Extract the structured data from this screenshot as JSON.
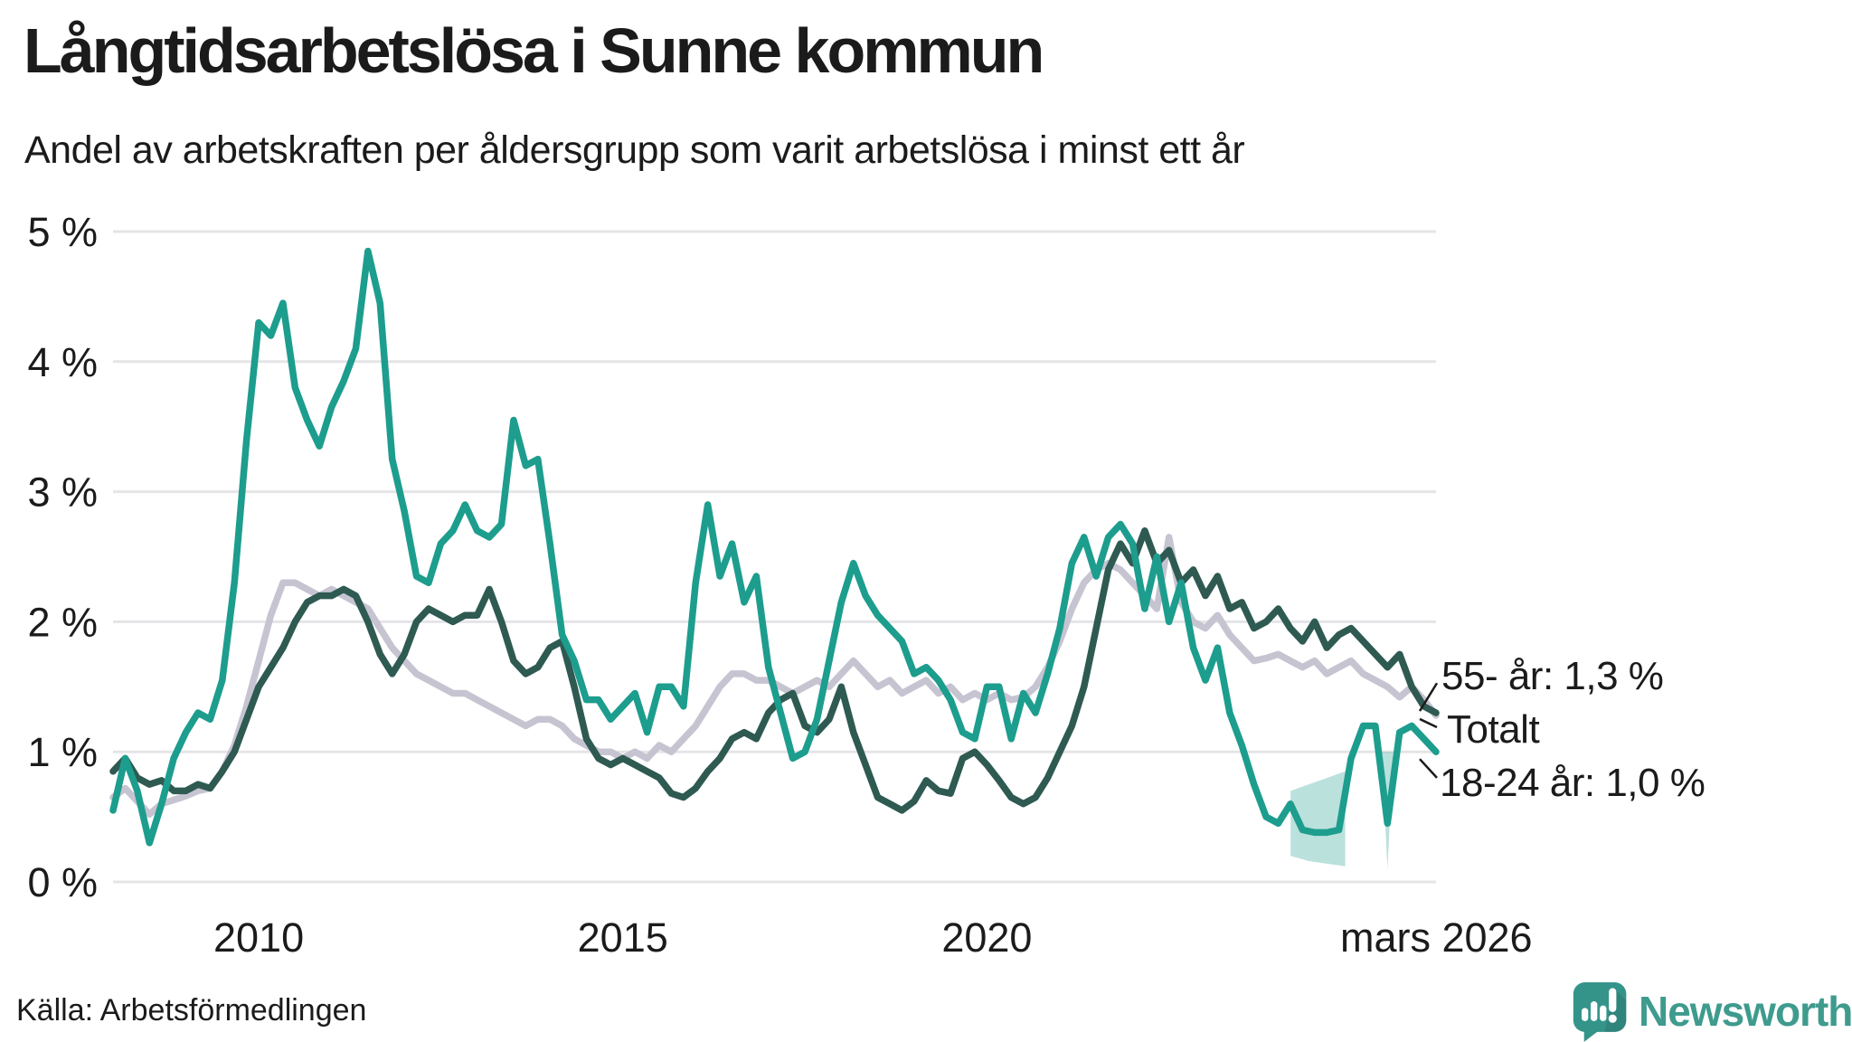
{
  "header": {
    "title": "Långtidsarbetslösa i Sunne kommun",
    "subtitle": "Andel av arbetskraften per åldersgrupp som varit arbetslösa i minst ett år"
  },
  "source": {
    "label": "Källa: Arbetsförmedlingen"
  },
  "logo": {
    "name": "Newsworthy",
    "icon": "newsworthy-speech-bubble-chart-icon",
    "color": "#35948a"
  },
  "chart_data": {
    "type": "line",
    "title": "Långtidsarbetslösa i Sunne kommun",
    "xlabel": "",
    "ylabel": "",
    "ylim": [
      0,
      5
    ],
    "grid": "horizontal",
    "x_start": 2008.0,
    "x_step": 0.1666667,
    "y_ticks": [
      {
        "v": 5,
        "label": "5 %"
      },
      {
        "v": 4,
        "label": "4 %"
      },
      {
        "v": 3,
        "label": "3 %"
      },
      {
        "v": 2,
        "label": "2 %"
      },
      {
        "v": 1,
        "label": "1 %"
      },
      {
        "v": 0,
        "label": "0 %"
      }
    ],
    "x_ticks": [
      {
        "t": 2010.0,
        "label": "2010"
      },
      {
        "t": 2015.0,
        "label": "2015"
      },
      {
        "t": 2020.0,
        "label": "2020"
      },
      {
        "t": 2026.17,
        "label": "mars 2026"
      }
    ],
    "colors": {
      "teal": "#1d9d8d",
      "dark_green": "#2e5a52",
      "gray": "#c7c4d2",
      "gridline": "#e5e5e8",
      "text": "#1b1b1b"
    },
    "series": [
      {
        "name": "Totalt",
        "color": "#c7c4d2",
        "values": [
          0.65,
          0.72,
          0.62,
          0.52,
          0.6,
          0.63,
          0.66,
          0.7,
          0.72,
          0.85,
          1.05,
          1.35,
          1.7,
          2.05,
          2.3,
          2.3,
          2.25,
          2.2,
          2.25,
          2.2,
          2.15,
          2.1,
          1.95,
          1.8,
          1.7,
          1.6,
          1.55,
          1.5,
          1.45,
          1.45,
          1.4,
          1.35,
          1.3,
          1.25,
          1.2,
          1.25,
          1.25,
          1.2,
          1.1,
          1.05,
          1.0,
          1.0,
          0.95,
          1.0,
          0.95,
          1.05,
          1.0,
          1.1,
          1.2,
          1.35,
          1.5,
          1.6,
          1.6,
          1.55,
          1.55,
          1.5,
          1.45,
          1.5,
          1.55,
          1.5,
          1.6,
          1.7,
          1.6,
          1.5,
          1.55,
          1.45,
          1.5,
          1.55,
          1.45,
          1.5,
          1.4,
          1.45,
          1.4,
          1.45,
          1.4,
          1.42,
          1.5,
          1.65,
          1.85,
          2.1,
          2.3,
          2.4,
          2.45,
          2.4,
          2.3,
          2.2,
          2.1,
          2.65,
          2.15,
          2.0,
          1.95,
          2.05,
          1.9,
          1.8,
          1.7,
          1.72,
          1.75,
          1.7,
          1.65,
          1.7,
          1.6,
          1.65,
          1.7,
          1.6,
          1.55,
          1.5,
          1.42,
          1.5,
          1.4,
          1.28
        ]
      },
      {
        "name": "55- år",
        "color": "#2e5a52",
        "values": [
          0.85,
          0.95,
          0.8,
          0.75,
          0.78,
          0.7,
          0.7,
          0.75,
          0.72,
          0.85,
          1.0,
          1.25,
          1.5,
          1.65,
          1.8,
          2.0,
          2.15,
          2.2,
          2.2,
          2.25,
          2.2,
          2.0,
          1.75,
          1.6,
          1.75,
          2.0,
          2.1,
          2.05,
          2.0,
          2.05,
          2.05,
          2.25,
          2.0,
          1.7,
          1.6,
          1.65,
          1.8,
          1.85,
          1.5,
          1.1,
          0.95,
          0.9,
          0.95,
          0.9,
          0.85,
          0.8,
          0.68,
          0.65,
          0.72,
          0.85,
          0.95,
          1.1,
          1.15,
          1.1,
          1.3,
          1.4,
          1.45,
          1.2,
          1.15,
          1.25,
          1.5,
          1.15,
          0.9,
          0.65,
          0.6,
          0.55,
          0.62,
          0.78,
          0.7,
          0.68,
          0.95,
          1.0,
          0.9,
          0.78,
          0.65,
          0.6,
          0.65,
          0.8,
          1.0,
          1.2,
          1.5,
          1.95,
          2.4,
          2.6,
          2.45,
          2.7,
          2.45,
          2.55,
          2.3,
          2.4,
          2.2,
          2.35,
          2.1,
          2.15,
          1.95,
          2.0,
          2.1,
          1.95,
          1.85,
          2.0,
          1.8,
          1.9,
          1.95,
          1.85,
          1.75,
          1.65,
          1.75,
          1.5,
          1.35,
          1.3
        ]
      },
      {
        "name": "18-24 år",
        "color": "#1d9d8d",
        "values": [
          0.55,
          0.95,
          0.7,
          0.3,
          0.6,
          0.95,
          1.15,
          1.3,
          1.25,
          1.55,
          2.3,
          3.4,
          4.3,
          4.2,
          4.45,
          3.8,
          3.55,
          3.35,
          3.65,
          3.85,
          4.1,
          4.85,
          4.45,
          3.25,
          2.85,
          2.35,
          2.3,
          2.6,
          2.7,
          2.9,
          2.7,
          2.65,
          2.75,
          3.55,
          3.2,
          3.25,
          2.6,
          1.9,
          1.7,
          1.4,
          1.4,
          1.25,
          1.35,
          1.45,
          1.15,
          1.5,
          1.5,
          1.35,
          2.3,
          2.9,
          2.35,
          2.6,
          2.15,
          2.35,
          1.65,
          1.3,
          0.95,
          1.0,
          1.25,
          1.7,
          2.15,
          2.45,
          2.2,
          2.05,
          1.95,
          1.85,
          1.6,
          1.65,
          1.55,
          1.4,
          1.15,
          1.1,
          1.5,
          1.5,
          1.1,
          1.45,
          1.3,
          1.6,
          1.95,
          2.45,
          2.65,
          2.35,
          2.65,
          2.75,
          2.6,
          2.1,
          2.5,
          2.0,
          2.3,
          1.8,
          1.55,
          1.8,
          1.3,
          1.05,
          0.75,
          0.5,
          0.45,
          0.6,
          0.4,
          0.38,
          0.38,
          0.4,
          0.95,
          1.2,
          1.2,
          0.45,
          1.15,
          1.2,
          1.1,
          1.0
        ]
      }
    ],
    "uncertainty_band": {
      "series": "18-24 år",
      "color": "#1d9d8d",
      "opacity": 0.3,
      "t": [
        2024.17,
        2024.42,
        2024.67,
        2024.92
      ],
      "hi": [
        0.7,
        0.75,
        0.8,
        0.85
      ],
      "lo": [
        0.2,
        0.16,
        0.14,
        0.12
      ]
    },
    "notch_band": {
      "points": [
        [
          2025.42,
          1.0
        ],
        [
          2025.5,
          0.1
        ],
        [
          2025.58,
          1.0
        ]
      ]
    },
    "annotations": [
      {
        "id": "55plus",
        "label": "55- år: 1,3 %",
        "series": "55- år",
        "value": 1.3
      },
      {
        "id": "totalt",
        "label": "Totalt",
        "series": "Totalt",
        "value": 1.28
      },
      {
        "id": "18-24",
        "label": "18-24 år: 1,0 %",
        "series": "18-24 år",
        "value": 1.0
      }
    ]
  }
}
